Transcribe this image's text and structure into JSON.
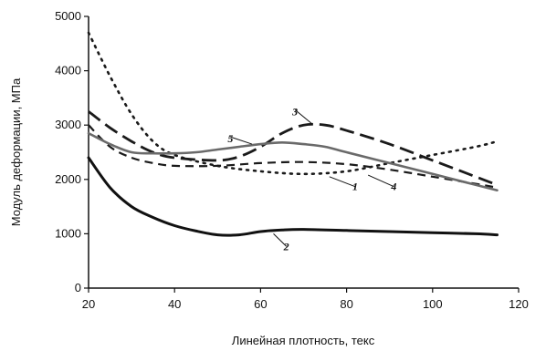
{
  "chart_data": {
    "type": "line",
    "xlabel": "Линейная плотность, текс",
    "ylabel": "Модуль деформации, МПа",
    "xlim": [
      20,
      120
    ],
    "ylim": [
      0,
      5000
    ],
    "x_ticks": [
      "20",
      "40",
      "60",
      "80",
      "100",
      "120"
    ],
    "y_ticks": [
      "0",
      "1000",
      "2000",
      "3000",
      "4000",
      "5000"
    ],
    "grid": false,
    "series": [
      {
        "name": "1",
        "style": "dotted",
        "x": [
          20,
          25,
          30,
          35,
          40,
          50,
          60,
          70,
          80,
          90,
          100,
          110,
          115
        ],
        "y": [
          4700,
          3900,
          3200,
          2700,
          2450,
          2250,
          2150,
          2100,
          2150,
          2300,
          2450,
          2600,
          2700
        ]
      },
      {
        "name": "2",
        "style": "solid",
        "x": [
          20,
          25,
          30,
          35,
          40,
          45,
          50,
          55,
          60,
          65,
          70,
          80,
          90,
          100,
          110,
          115
        ],
        "y": [
          2400,
          1850,
          1500,
          1300,
          1150,
          1050,
          980,
          980,
          1040,
          1070,
          1080,
          1060,
          1040,
          1020,
          1000,
          980
        ]
      },
      {
        "name": "3",
        "style": "long-dash",
        "x": [
          20,
          25,
          30,
          35,
          40,
          50,
          55,
          60,
          65,
          70,
          75,
          80,
          90,
          100,
          110,
          115
        ],
        "y": [
          3250,
          2950,
          2700,
          2500,
          2400,
          2350,
          2420,
          2600,
          2850,
          3000,
          3000,
          2900,
          2650,
          2350,
          2050,
          1900
        ]
      },
      {
        "name": "4",
        "style": "dash",
        "x": [
          20,
          25,
          30,
          35,
          40,
          50,
          60,
          70,
          80,
          90,
          100,
          110,
          115
        ],
        "y": [
          3000,
          2600,
          2400,
          2300,
          2250,
          2250,
          2300,
          2320,
          2280,
          2180,
          2050,
          1920,
          1850
        ]
      },
      {
        "name": "5",
        "style": "solid-thin",
        "x": [
          20,
          25,
          30,
          35,
          40,
          45,
          50,
          55,
          60,
          65,
          70,
          75,
          80,
          90,
          100,
          110,
          115
        ],
        "y": [
          2850,
          2650,
          2500,
          2480,
          2480,
          2500,
          2550,
          2600,
          2650,
          2680,
          2650,
          2600,
          2500,
          2300,
          2100,
          1900,
          1800
        ]
      }
    ],
    "labels": [
      {
        "text": "1",
        "x": 82,
        "y": 1800,
        "lx": 76,
        "ly": 2050
      },
      {
        "text": "2",
        "x": 66,
        "y": 700,
        "lx": 63,
        "ly": 1000
      },
      {
        "text": "3",
        "x": 68,
        "y": 3350,
        "lx": 72,
        "ly": 3020
      },
      {
        "text": "4",
        "x": 91,
        "y": 1800,
        "lx": 85,
        "ly": 2080
      },
      {
        "text": "5",
        "x": 53,
        "y": 2850,
        "lx": 58,
        "ly": 2650
      }
    ]
  }
}
